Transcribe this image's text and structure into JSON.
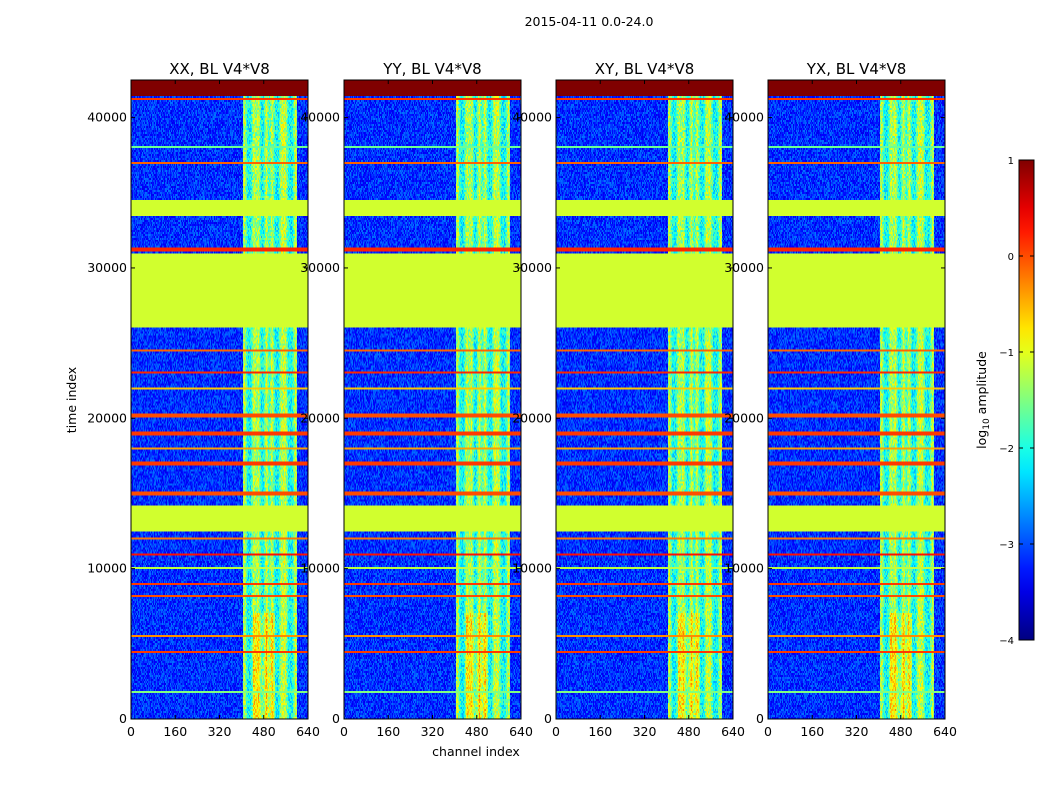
{
  "chart_data": {
    "type": "heatmap",
    "title": "2015-04-11 0.0-24.0",
    "xlabel": "channel index",
    "ylabel": "time index",
    "xlim": [
      0,
      640
    ],
    "ylim": [
      0,
      42500
    ],
    "xticks": [
      0,
      160,
      320,
      480,
      640
    ],
    "yticks": [
      0,
      10000,
      20000,
      30000,
      40000
    ],
    "panels": [
      {
        "name": "XX",
        "title": "XX, BL V4*V8",
        "bright_columns": [
          410,
          445,
          460,
          490,
          510,
          545,
          558,
          595
        ],
        "seed": 11
      },
      {
        "name": "YY",
        "title": "YY, BL V4*V8",
        "bright_columns": [
          410,
          445,
          460,
          490,
          510,
          545,
          558,
          595
        ],
        "seed": 23
      },
      {
        "name": "XY",
        "title": "XY, BL V4*V8",
        "bright_columns": [
          410,
          445,
          460,
          490,
          510,
          545,
          558,
          595
        ],
        "seed": 37
      },
      {
        "name": "YX",
        "title": "YX, BL V4*V8",
        "bright_columns": [
          410,
          445,
          460,
          490,
          510,
          545,
          558,
          595
        ],
        "seed": 53
      }
    ],
    "colorbar": {
      "label": "log₁₀ amplitude",
      "label_main": "log",
      "label_sub": "10",
      "label_rest": " amplitude",
      "range": [
        -4,
        1
      ],
      "ticks": [
        1,
        0,
        -1,
        -2,
        -3,
        -4
      ],
      "tick_labels": [
        "1",
        "0",
        "−1",
        "−2",
        "−3",
        "−4"
      ],
      "colormap": "jet"
    },
    "flagged_bands": [
      {
        "t0": 41500,
        "t1": 42500,
        "value": 1.0
      },
      {
        "t0": 33500,
        "t1": 34500,
        "value": -1.1
      },
      {
        "t0": 26000,
        "t1": 31000,
        "value": -1.1
      },
      {
        "t0": 12500,
        "t1": 14200,
        "value": -1.1
      }
    ],
    "flagged_lines": [
      {
        "t": 41200,
        "value": 0.1
      },
      {
        "t": 38000,
        "value": -1.6
      },
      {
        "t": 37000,
        "value": -0.1
      },
      {
        "t": 31200,
        "value": 0.2
      },
      {
        "t": 24500,
        "value": -0.1
      },
      {
        "t": 23000,
        "value": 0.2
      },
      {
        "t": 22000,
        "value": -0.6
      },
      {
        "t": 20200,
        "value": 0.0
      },
      {
        "t": 19000,
        "value": 0.1
      },
      {
        "t": 18000,
        "value": -0.4
      },
      {
        "t": 17000,
        "value": 0.1
      },
      {
        "t": 15000,
        "value": 0.0
      },
      {
        "t": 12000,
        "value": -0.2
      },
      {
        "t": 11000,
        "value": 0.3
      },
      {
        "t": 10000,
        "value": -1.2
      },
      {
        "t": 9000,
        "value": 0.1
      },
      {
        "t": 8200,
        "value": 0.0
      },
      {
        "t": 5500,
        "value": -0.3
      },
      {
        "t": 4500,
        "value": 0.1
      },
      {
        "t": 1800,
        "value": -1.5
      }
    ]
  }
}
